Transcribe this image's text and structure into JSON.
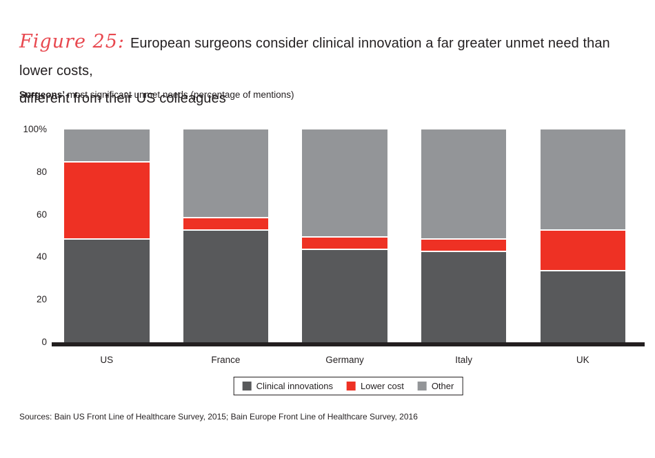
{
  "header": {
    "figure_label": "Figure 25:",
    "title_line1": "European surgeons consider clinical innovation a far greater unmet need than lower costs,",
    "title_line2": "different from their US colleagues"
  },
  "subtitle": {
    "lead": "Surgeons’",
    "rest": " most significant unmet needs (percentage of mentions)"
  },
  "chart_data": {
    "type": "bar",
    "stacked": true,
    "title": "Surgeons’ most significant unmet needs (percentage of mentions)",
    "categories": [
      "US",
      "France",
      "Germany",
      "Italy",
      "UK"
    ],
    "series": [
      {
        "name": "Clinical innovations",
        "color": "#58595b",
        "values": [
          49,
          53,
          44,
          43,
          34
        ]
      },
      {
        "name": "Lower cost",
        "color": "#ee3124",
        "values": [
          36,
          6,
          6,
          6,
          19
        ]
      },
      {
        "name": "Other",
        "color": "#939598",
        "values": [
          15,
          41,
          50,
          51,
          47
        ]
      }
    ],
    "y_ticks": [
      "100%",
      "80",
      "60",
      "40",
      "20",
      "0"
    ],
    "y_tick_values": [
      100,
      80,
      60,
      40,
      20,
      0
    ],
    "ylim": [
      0,
      100
    ],
    "unit": "percent",
    "grid": false,
    "legend_position": "bottom",
    "axis_color": "#231f20",
    "separator_color": "#ffffff"
  },
  "footer": {
    "sources": "Sources: Bain US Front Line of Healthcare Survey, 2015; Bain Europe Front Line of Healthcare Survey, 2016"
  },
  "colors": {
    "figure_label_red": "#e8484f",
    "bar_red": "#ee3124",
    "bar_dark_gray": "#58595b",
    "bar_light_gray": "#939598",
    "text": "#231f20"
  }
}
